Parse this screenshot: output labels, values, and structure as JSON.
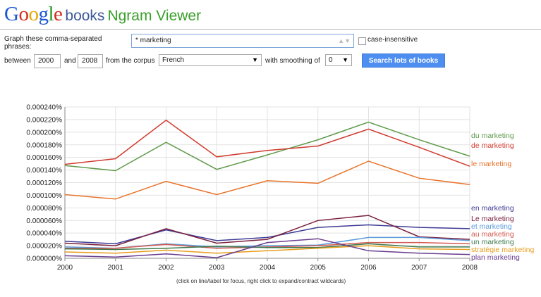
{
  "header": {
    "logo_letters": [
      {
        "ch": "G",
        "color": "#1a55d3"
      },
      {
        "ch": "o",
        "color": "#d32b20"
      },
      {
        "ch": "o",
        "color": "#e6a700"
      },
      {
        "ch": "g",
        "color": "#1a55d3"
      },
      {
        "ch": "l",
        "color": "#2a9a26"
      },
      {
        "ch": "e",
        "color": "#d32b20"
      }
    ],
    "books": "books",
    "title": "Ngram Viewer"
  },
  "form": {
    "phrases_label_line1": "Graph these comma-separated",
    "phrases_label_line2": "phrases:",
    "phrases_value": "* marketing",
    "case_insensitive": "case-insensitive",
    "between": "between",
    "from_year": "2000",
    "and": "and",
    "to_year": "2008",
    "from_corpus": "from the corpus",
    "corpus": "French",
    "with_smoothing": "with smoothing of",
    "smoothing": "0",
    "search_button": "Search lots of books"
  },
  "footer": "(click on line/label for focus, right click to expand/contract wildcards)",
  "chart_data": {
    "type": "line",
    "x": [
      2000,
      2001,
      2002,
      2003,
      2004,
      2005,
      2006,
      2007,
      2008
    ],
    "ylim": [
      0,
      0.00024
    ],
    "y_ticks": [
      "0.000000%",
      "0.000020%",
      "0.000040%",
      "0.000060%",
      "0.000080%",
      "0.000100%",
      "0.000120%",
      "0.000140%",
      "0.000160%",
      "0.000180%",
      "0.000200%",
      "0.000220%",
      "0.000240%"
    ],
    "x_ticks": [
      "2000",
      "2001",
      "2002",
      "2003",
      "2004",
      "2005",
      "2006",
      "2007",
      "2008"
    ],
    "grid": true,
    "series": [
      {
        "name": "du marketing",
        "color": "#5f9a4a",
        "values": [
          0.000147,
          0.000139,
          0.000184,
          0.000141,
          0.000164,
          0.000188,
          0.000216,
          0.000188,
          0.000162
        ]
      },
      {
        "name": "de marketing",
        "color": "#d03a2e",
        "values": [
          0.000149,
          0.000158,
          0.000219,
          0.000161,
          0.000171,
          0.000178,
          0.000205,
          0.000176,
          0.000146
        ]
      },
      {
        "name": "le marketing",
        "color": "#e8732a",
        "values": [
          0.000101,
          9.4e-05,
          0.000122,
          0.000101,
          0.000123,
          0.000119,
          0.000154,
          0.000127,
          0.000117
        ]
      },
      {
        "name": "en marketing",
        "color": "#3d3b94",
        "values": [
          2.7e-05,
          2.3e-05,
          4.5e-05,
          2.8e-05,
          3.3e-05,
          4.9e-05,
          5.3e-05,
          4.9e-05,
          4.7e-05
        ]
      },
      {
        "name": "Le marketing",
        "color": "#7a1f3e",
        "values": [
          2.4e-05,
          2e-05,
          4.7e-05,
          2.4e-05,
          3e-05,
          6e-05,
          6.8e-05,
          3.4e-05,
          3e-05
        ]
      },
      {
        "name": "et marketing",
        "color": "#5b9bd9",
        "values": [
          1.8e-05,
          1.6e-05,
          2.3e-05,
          1.8e-05,
          2e-05,
          2.1e-05,
          3.3e-05,
          3.3e-05,
          2.8e-05
        ]
      },
      {
        "name": "au marketing",
        "color": "#d45a52",
        "values": [
          1.6e-05,
          1.6e-05,
          2.2e-05,
          1.6e-05,
          1.8e-05,
          2e-05,
          2.5e-05,
          2.5e-05,
          2.3e-05
        ]
      },
      {
        "name": "un marketing",
        "color": "#3e7a4e",
        "values": [
          1.5e-05,
          1.4e-05,
          1.6e-05,
          1.9e-05,
          1.7e-05,
          1.7e-05,
          2.3e-05,
          1.8e-05,
          1.8e-05
        ]
      },
      {
        "name": "stratégie marketing",
        "color": "#e89d1d",
        "values": [
          1e-05,
          8e-06,
          1.3e-05,
          8e-06,
          1.2e-05,
          1.6e-05,
          2e-05,
          1.5e-05,
          1.4e-05
        ]
      },
      {
        "name": "plan marketing",
        "color": "#6a3d8f",
        "values": [
          4e-06,
          2e-06,
          7e-06,
          1e-06,
          2.5e-05,
          3.1e-05,
          1.2e-05,
          8e-06,
          6e-06
        ]
      }
    ]
  }
}
